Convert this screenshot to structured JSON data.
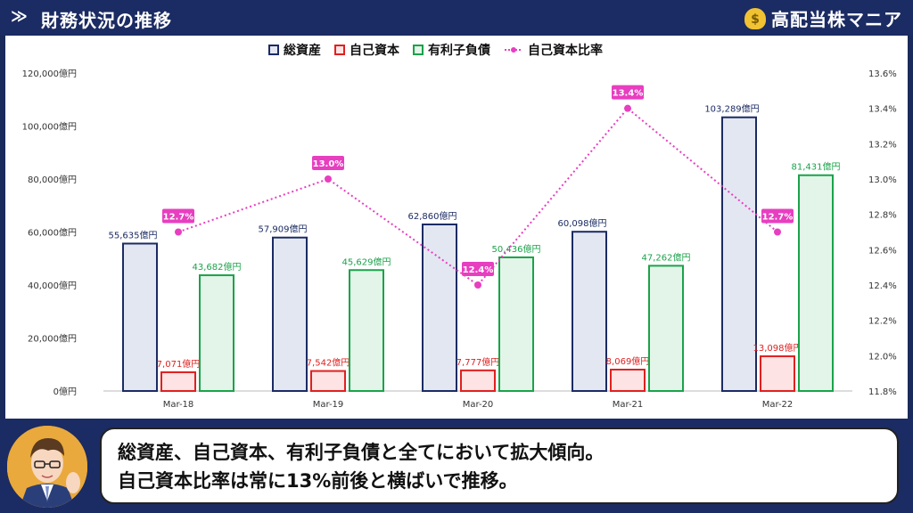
{
  "header": {
    "arrow": "≫",
    "title": "財務状況の推移",
    "brand_icon": "$",
    "brand_name": "高配当株マニア"
  },
  "chart_data": {
    "type": "bar",
    "categories": [
      "Mar-18",
      "Mar-19",
      "Mar-20",
      "Mar-21",
      "Mar-22"
    ],
    "series": [
      {
        "name": "総資産",
        "type": "bar",
        "axis": "left",
        "values": [
          55635,
          57909,
          62860,
          60098,
          103289
        ],
        "labels": [
          "55,635億円",
          "57,909億円",
          "62,860億円",
          "60,098億円",
          "103,289億円"
        ],
        "color": "#1b2b63",
        "fill": "#e3e7f2"
      },
      {
        "name": "自己資本",
        "type": "bar",
        "axis": "left",
        "values": [
          7071,
          7542,
          7777,
          8069,
          13098
        ],
        "labels": [
          "7,071億円",
          "7,542億円",
          "7,777億円",
          "8,069億円",
          "13,098億円"
        ],
        "color": "#e02020",
        "fill": "#fde3e3"
      },
      {
        "name": "有利子負債",
        "type": "bar",
        "axis": "left",
        "values": [
          43682,
          45629,
          50436,
          47262,
          81431
        ],
        "labels": [
          "43,682億円",
          "45,629億円",
          "50,436億円",
          "47,262億円",
          "81,431億円"
        ],
        "color": "#1aa34a",
        "fill": "#e2f5e8"
      },
      {
        "name": "自己資本比率",
        "type": "line",
        "axis": "right",
        "values": [
          12.7,
          13.0,
          12.4,
          13.4,
          12.7
        ],
        "labels": [
          "12.7%",
          "13.0%",
          "12.4%",
          "13.4%",
          "12.7%"
        ],
        "color": "#e83ec0"
      }
    ],
    "y_left": {
      "min": 0,
      "max": 120000,
      "ticks": [
        "0億円",
        "20,000億円",
        "40,000億円",
        "60,000億円",
        "80,000億円",
        "100,000億円",
        "120,000億円"
      ]
    },
    "y_right": {
      "min": 11.8,
      "max": 13.6,
      "ticks": [
        "11.8%",
        "12.0%",
        "12.2%",
        "12.4%",
        "12.6%",
        "12.8%",
        "13.0%",
        "13.2%",
        "13.4%",
        "13.6%"
      ]
    },
    "legend_position": "top-center",
    "grid": false
  },
  "comment": {
    "line1": "総資産、自己資本、有利子負債と全てにおいて拡大傾向。",
    "line2": "自己資本比率は常に13%前後と横ばいで推移。"
  }
}
